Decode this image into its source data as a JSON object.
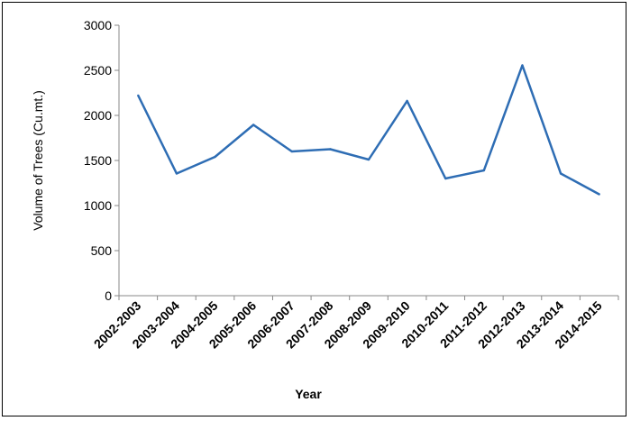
{
  "chart_data": {
    "type": "line",
    "title": "",
    "xlabel": "Year",
    "ylabel": "Volume of Trees (Cu.mt.)",
    "categories": [
      "2002-2003",
      "2003-2004",
      "2004-2005",
      "2005-2006",
      "2006-2007",
      "2007-2008",
      "2008-2009",
      "2009-2010",
      "2010-2011",
      "2011-2012",
      "2012-2013",
      "2013-2014",
      "2014-2015"
    ],
    "series": [
      {
        "values": [
          2220,
          1355,
          1540,
          1895,
          1600,
          1625,
          1510,
          2160,
          1300,
          1390,
          2555,
          1355,
          1125
        ],
        "color": "#2e6db4"
      }
    ],
    "ylim": [
      0,
      3000
    ],
    "yticks": [
      "0",
      "500",
      "1000",
      "1500",
      "2000",
      "2500",
      "3000"
    ],
    "grid": false,
    "legend": "none"
  }
}
